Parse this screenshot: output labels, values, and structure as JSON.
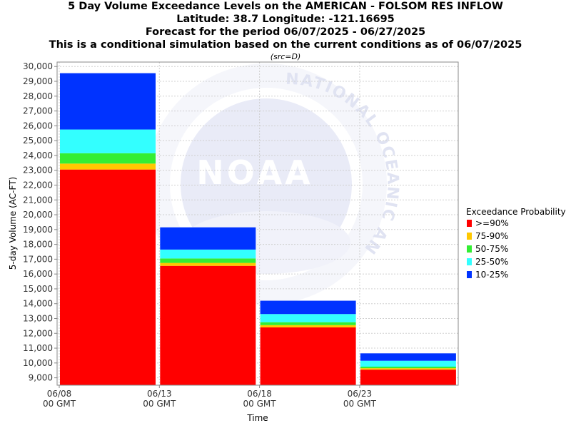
{
  "chart_data": {
    "type": "bar",
    "title_lines": [
      "5 Day Volume Exceedance Levels on the AMERICAN - FOLSOM RES INFLOW",
      "Latitude: 38.7 Longitude: -121.16695",
      "Forecast for the period 06/07/2025 - 06/27/2025",
      "This is a conditional simulation based on the current conditions as of 06/07/2025"
    ],
    "subtitle": "(src=D)",
    "xlabel": "Time",
    "ylabel": "5-day Volume (AC-FT)",
    "ylim": [
      8500,
      30300
    ],
    "yticks": [
      9000,
      10000,
      11000,
      12000,
      13000,
      14000,
      15000,
      16000,
      17000,
      18000,
      19000,
      20000,
      21000,
      22000,
      23000,
      24000,
      25000,
      26000,
      27000,
      28000,
      29000,
      30000
    ],
    "ytick_labels": [
      "9,000",
      "10,000",
      "11,000",
      "12,000",
      "13,000",
      "14,000",
      "15,000",
      "16,000",
      "17,000",
      "18,000",
      "19,000",
      "20,000",
      "21,000",
      "22,000",
      "23,000",
      "24,000",
      "25,000",
      "26,000",
      "27,000",
      "28,000",
      "29,000",
      "30,000"
    ],
    "xticks": [
      {
        "line1": "06/08",
        "line2": "00 GMT"
      },
      {
        "line1": "06/13",
        "line2": "00 GMT"
      },
      {
        "line1": "06/18",
        "line2": "00 GMT"
      },
      {
        "line1": "06/23",
        "line2": "00 GMT"
      }
    ],
    "legend_title": "Exceedance Probability",
    "legend_position": "right",
    "grid": true,
    "series": [
      {
        "name": ">=90%",
        "color": "#ff0000"
      },
      {
        "name": "75-90%",
        "color": "#ffc800"
      },
      {
        "name": "50-75%",
        "color": "#33ee33"
      },
      {
        "name": "25-50%",
        "color": "#33ffff"
      },
      {
        "name": "10-25%",
        "color": "#0033ff"
      }
    ],
    "bars": [
      {
        "start_tick": 0,
        "levels": [
          23050,
          23450,
          24150,
          25750,
          29550
        ]
      },
      {
        "start_tick": 1,
        "levels": [
          16550,
          16750,
          17050,
          17650,
          19150
        ]
      },
      {
        "start_tick": 2,
        "levels": [
          12400,
          12550,
          12750,
          13300,
          14200
        ]
      },
      {
        "start_tick": 3,
        "levels": [
          9550,
          9650,
          9750,
          10150,
          10650
        ]
      }
    ]
  },
  "watermark": {
    "logo_text": "NOAA",
    "ring_text": "NATIONAL OCEANIC AND ATMOSPHERIC ADMINISTRATION"
  }
}
